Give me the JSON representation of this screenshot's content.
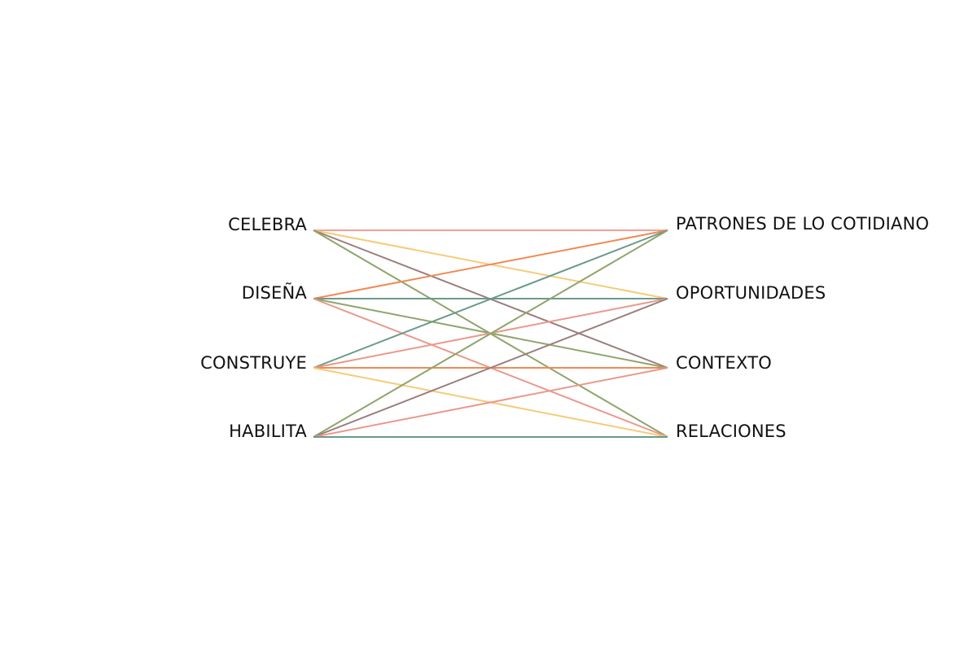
{
  "diagram": {
    "left_nodes": [
      {
        "id": "celebra",
        "label": "CELEBRA"
      },
      {
        "id": "disena",
        "label": "DISEÑA"
      },
      {
        "id": "construye",
        "label": "CONSTRUYE"
      },
      {
        "id": "habilita",
        "label": "HABILITA"
      }
    ],
    "right_nodes": [
      {
        "id": "patrones",
        "label": "PATRONES DE LO COTIDIANO"
      },
      {
        "id": "oportunidades",
        "label": "OPORTUNIDADES"
      },
      {
        "id": "contexto",
        "label": "CONTEXTO"
      },
      {
        "id": "relaciones",
        "label": "RELACIONES"
      }
    ],
    "links": [
      {
        "from": "celebra",
        "to": "patrones",
        "color": "#f0a29a"
      },
      {
        "from": "celebra",
        "to": "oportunidades",
        "color": "#f6cb78"
      },
      {
        "from": "celebra",
        "to": "contexto",
        "color": "#9b7e7e"
      },
      {
        "from": "celebra",
        "to": "relaciones",
        "color": "#8fa56c"
      },
      {
        "from": "disena",
        "to": "patrones",
        "color": "#f08a55"
      },
      {
        "from": "disena",
        "to": "oportunidades",
        "color": "#6a9a8a"
      },
      {
        "from": "disena",
        "to": "contexto",
        "color": "#8fa56c"
      },
      {
        "from": "disena",
        "to": "relaciones",
        "color": "#e9998d"
      },
      {
        "from": "construye",
        "to": "patrones",
        "color": "#6a9a8a"
      },
      {
        "from": "construye",
        "to": "oportunidades",
        "color": "#e9998d"
      },
      {
        "from": "construye",
        "to": "contexto",
        "color": "#f08a55"
      },
      {
        "from": "construye",
        "to": "relaciones",
        "color": "#f6cb78"
      },
      {
        "from": "habilita",
        "to": "patrones",
        "color": "#8fa56c"
      },
      {
        "from": "habilita",
        "to": "oportunidades",
        "color": "#9b7e7e"
      },
      {
        "from": "habilita",
        "to": "contexto",
        "color": "#e9998d"
      },
      {
        "from": "habilita",
        "to": "relaciones",
        "color": "#6a9a8a"
      }
    ]
  }
}
